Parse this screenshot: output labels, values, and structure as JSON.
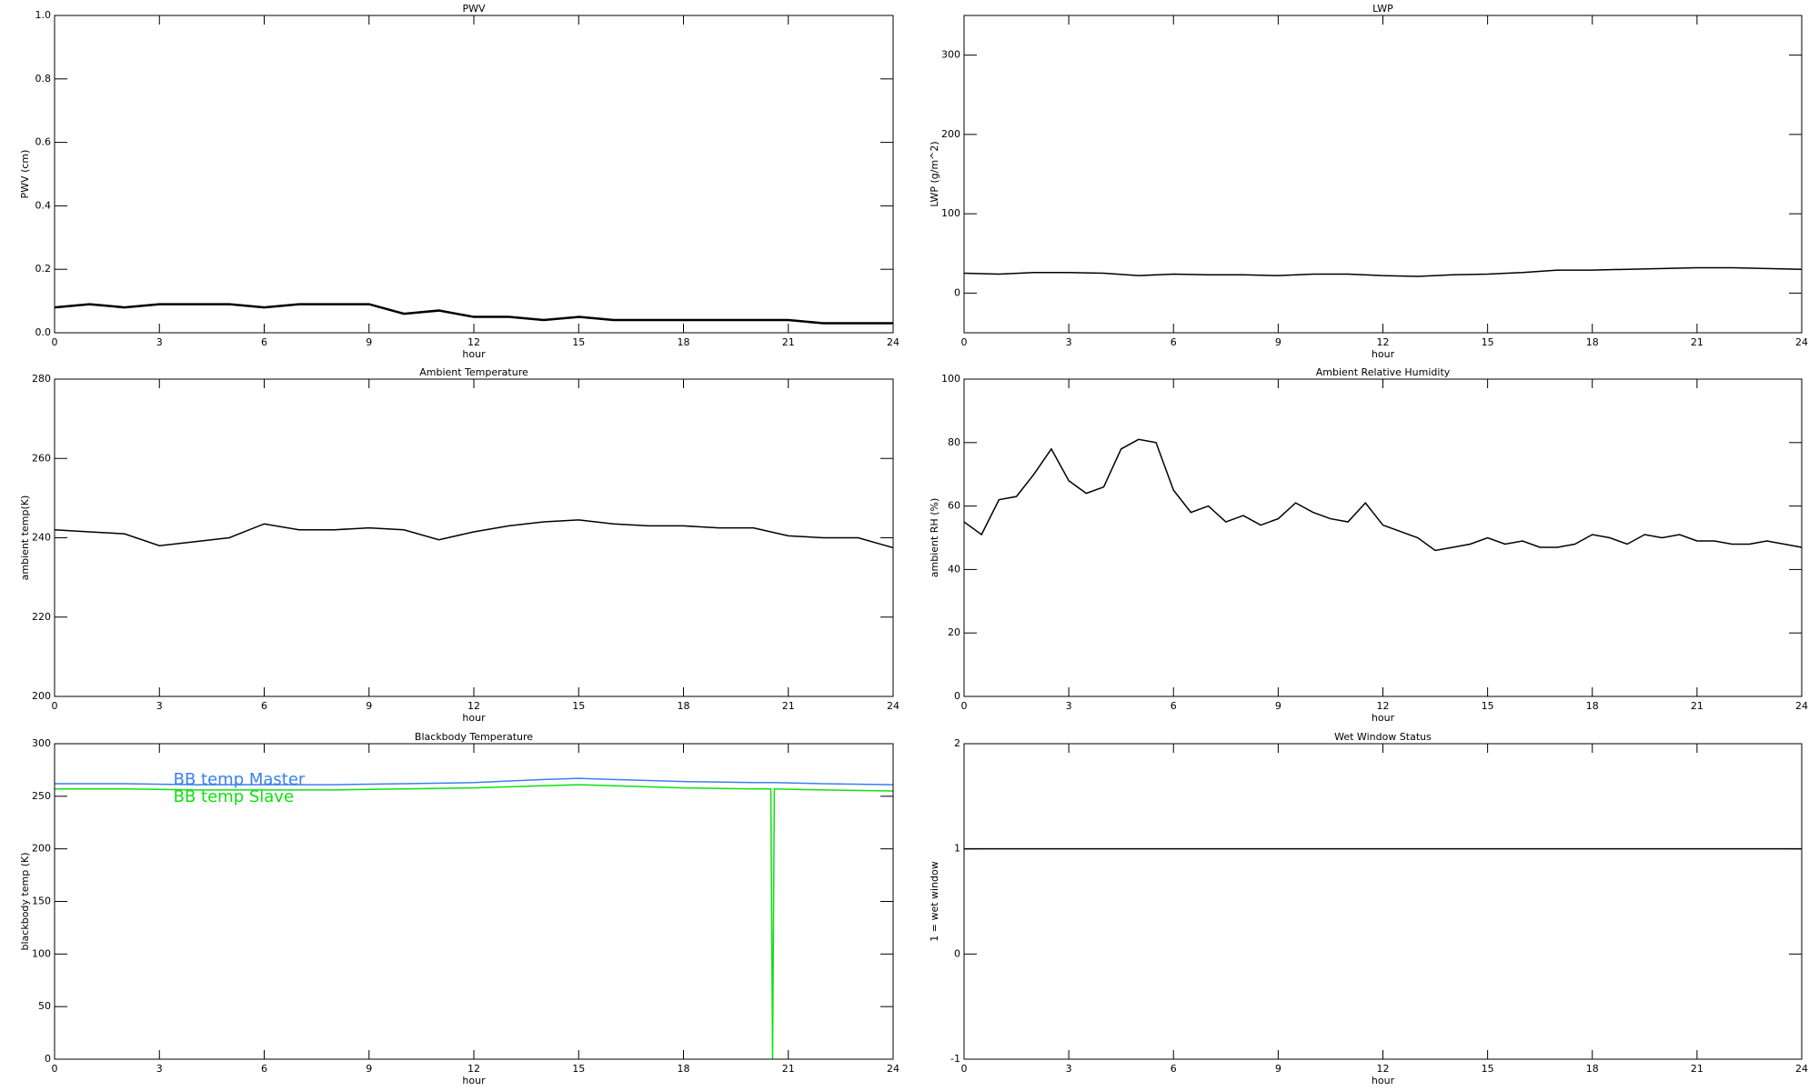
{
  "chart_data": [
    {
      "type": "line",
      "title": "PWV",
      "xlabel": "hour",
      "ylabel": "PWV (cm)",
      "x": [
        0,
        1,
        2,
        3,
        4,
        5,
        6,
        7,
        8,
        9,
        10,
        11,
        12,
        13,
        14,
        15,
        16,
        17,
        18,
        19,
        20,
        21,
        22,
        23,
        24
      ],
      "series": [
        {
          "color": "#000000",
          "values": [
            0.08,
            0.09,
            0.08,
            0.09,
            0.09,
            0.09,
            0.08,
            0.09,
            0.09,
            0.09,
            0.06,
            0.07,
            0.05,
            0.05,
            0.04,
            0.05,
            0.04,
            0.04,
            0.04,
            0.04,
            0.04,
            0.04,
            0.03,
            0.03,
            0.03
          ]
        }
      ],
      "xlim": [
        0,
        24
      ],
      "xticks": [
        0,
        3,
        6,
        9,
        12,
        15,
        18,
        21,
        24
      ],
      "ylim": [
        0,
        1
      ],
      "yticks": [
        {
          "value": 0,
          "label": "0.0"
        },
        0.2,
        0.4,
        0.6,
        0.8,
        {
          "value": 1,
          "label": "1.0"
        }
      ]
    },
    {
      "type": "line",
      "title": "LWP",
      "xlabel": "hour",
      "ylabel": "LWP (g/m^2)",
      "x": [
        0,
        1,
        2,
        3,
        4,
        5,
        6,
        7,
        8,
        9,
        10,
        11,
        12,
        13,
        14,
        15,
        16,
        17,
        18,
        19,
        20,
        21,
        22,
        23,
        24
      ],
      "series": [
        {
          "color": "#000000",
          "values": [
            25,
            24,
            26,
            26,
            25,
            22,
            24,
            23,
            23,
            22,
            24,
            24,
            22,
            21,
            23,
            24,
            26,
            29,
            29,
            30,
            31,
            32,
            32,
            31,
            30
          ]
        }
      ],
      "xlim": [
        0,
        24
      ],
      "xticks": [
        0,
        3,
        6,
        9,
        12,
        15,
        18,
        21,
        24
      ],
      "ylim": [
        -50,
        350
      ],
      "yticks": [
        0,
        100,
        200,
        300
      ]
    },
    {
      "type": "line",
      "title": "Ambient Temperature",
      "xlabel": "hour",
      "ylabel": "ambient temp(K)",
      "x": [
        0,
        1,
        2,
        3,
        4,
        5,
        6,
        7,
        8,
        9,
        10,
        11,
        12,
        13,
        14,
        15,
        16,
        17,
        18,
        19,
        20,
        21,
        22,
        23,
        24
      ],
      "series": [
        {
          "color": "#000000",
          "values": [
            242,
            241.5,
            241,
            238,
            239,
            240,
            243.5,
            242,
            242,
            242.5,
            242,
            239.5,
            241.5,
            243,
            244,
            244.5,
            243.5,
            243,
            243,
            242.5,
            242.5,
            240.5,
            240,
            240,
            237.5
          ]
        }
      ],
      "xlim": [
        0,
        24
      ],
      "xticks": [
        0,
        3,
        6,
        9,
        12,
        15,
        18,
        21,
        24
      ],
      "ylim": [
        200,
        280
      ],
      "yticks": [
        200,
        220,
        240,
        260,
        280
      ]
    },
    {
      "type": "line",
      "title": "Ambient Relative Humidity",
      "xlabel": "hour",
      "ylabel": "ambient RH (%)",
      "x": [
        0,
        0.5,
        1,
        1.5,
        2,
        2.5,
        3,
        3.5,
        4,
        4.5,
        5,
        5.5,
        6,
        6.5,
        7,
        7.5,
        8,
        8.5,
        9,
        9.5,
        10,
        10.5,
        11,
        11.5,
        12,
        12.5,
        13,
        13.5,
        14,
        14.5,
        15,
        15.5,
        16,
        16.5,
        17,
        17.5,
        18,
        18.5,
        19,
        19.5,
        20,
        20.5,
        21,
        21.5,
        22,
        22.5,
        23,
        23.5,
        24
      ],
      "series": [
        {
          "color": "#000000",
          "values": [
            55,
            51,
            62,
            63,
            70,
            78,
            68,
            64,
            66,
            78,
            81,
            80,
            65,
            58,
            60,
            55,
            57,
            54,
            56,
            61,
            58,
            56,
            55,
            61,
            54,
            52,
            50,
            46,
            47,
            48,
            50,
            48,
            49,
            47,
            47,
            48,
            51,
            50,
            48,
            51,
            50,
            51,
            49,
            49,
            48,
            48,
            49,
            48,
            47
          ]
        }
      ],
      "xlim": [
        0,
        24
      ],
      "xticks": [
        0,
        3,
        6,
        9,
        12,
        15,
        18,
        21,
        24
      ],
      "ylim": [
        0,
        100
      ],
      "yticks": [
        0,
        20,
        40,
        60,
        80,
        100
      ]
    },
    {
      "type": "line",
      "title": "Blackbody Temperature",
      "xlabel": "hour",
      "ylabel": "blackbody temp (K)",
      "x": [
        0,
        2,
        4,
        6,
        8,
        10,
        12,
        14,
        15,
        16,
        18,
        20,
        20.5,
        20.55,
        20.6,
        22,
        24
      ],
      "series": [
        {
          "name": "BB temp Master",
          "color": "#3a7ff0",
          "values": [
            262,
            262,
            261,
            261,
            261,
            262,
            263,
            266,
            267,
            266,
            264,
            263,
            263,
            263,
            263,
            262,
            261
          ]
        },
        {
          "name": "BB temp Slave",
          "color": "#10e010",
          "values": [
            257,
            257,
            256,
            256,
            256,
            257,
            258,
            260,
            261,
            260,
            258,
            257,
            257,
            0,
            257,
            256,
            255
          ]
        }
      ],
      "xlim": [
        0,
        24
      ],
      "xticks": [
        0,
        3,
        6,
        9,
        12,
        15,
        18,
        21,
        24
      ],
      "ylim": [
        0,
        300
      ],
      "yticks": [
        0,
        50,
        100,
        150,
        200,
        250,
        300
      ]
    },
    {
      "type": "line",
      "title": "Wet Window Status",
      "xlabel": "hour",
      "ylabel": "1 = wet window",
      "x": [
        0,
        24
      ],
      "series": [
        {
          "color": "#000000",
          "values": [
            1,
            1
          ]
        }
      ],
      "xlim": [
        0,
        24
      ],
      "xticks": [
        0,
        3,
        6,
        9,
        12,
        15,
        18,
        21,
        24
      ],
      "ylim": [
        -1,
        2
      ],
      "yticks": [
        -1,
        0,
        1,
        2
      ]
    }
  ]
}
